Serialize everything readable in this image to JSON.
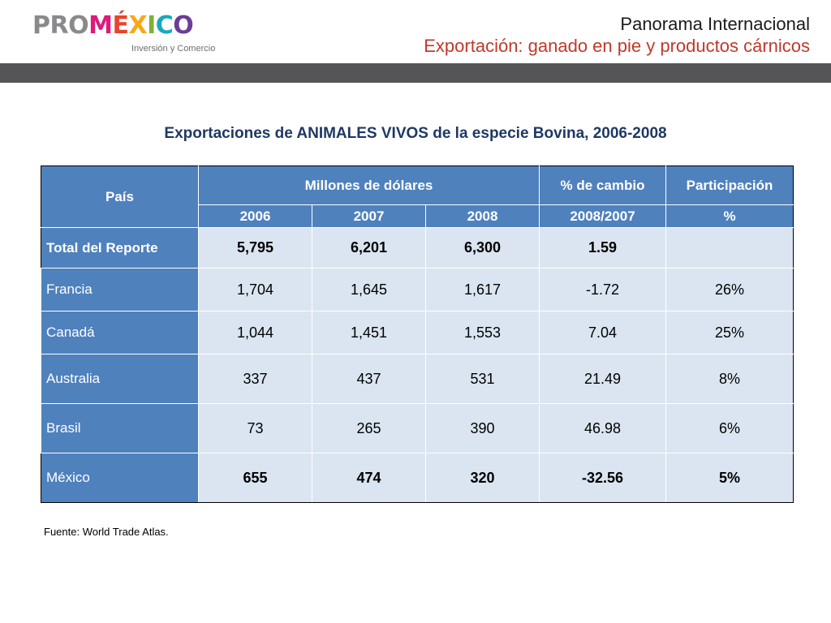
{
  "logo": {
    "pro": "PRO",
    "mexico": [
      "M",
      "É",
      "X",
      "I",
      "C",
      "O"
    ],
    "subtitle": "Inversión y Comercio"
  },
  "header": {
    "title": "Panorama Internacional",
    "subtitle_strong": "Exportación:",
    "subtitle_rest": " ganado en pie y productos cárnicos"
  },
  "table_title": "Exportaciones de ANIMALES VIVOS de la especie Bovina, 2006-2008",
  "table": {
    "col_pais": "País",
    "col_millones": "Millones de dólares",
    "col_cambio": "% de cambio",
    "col_cambio_sub": "2008/2007",
    "col_part": "Participación",
    "col_part_sub": "%",
    "years": [
      "2006",
      "2007",
      "2008"
    ],
    "total": {
      "name": "Total del Reporte",
      "v2006": "5,795",
      "v2007": "6,201",
      "v2008": "6,300",
      "cambio": "1.59",
      "part": ""
    },
    "rows": [
      {
        "name": "Francia",
        "v2006": "1,704",
        "v2007": "1,645",
        "v2008": "1,617",
        "cambio": "-1.72",
        "part": "26%"
      },
      {
        "name": "Canadá",
        "v2006": "1,044",
        "v2007": "1,451",
        "v2008": "1,553",
        "cambio": "7.04",
        "part": "25%"
      },
      {
        "name": "Australia",
        "v2006": "337",
        "v2007": "437",
        "v2008": "531",
        "cambio": "21.49",
        "part": "8%"
      },
      {
        "name": "Brasil",
        "v2006": "73",
        "v2007": "265",
        "v2008": "390",
        "cambio": "46.98",
        "part": "6%"
      },
      {
        "name": "México",
        "v2006": "655",
        "v2007": "474",
        "v2008": "320",
        "cambio": "-32.56",
        "part": "5%"
      }
    ]
  },
  "source": "Fuente: World Trade Atlas.",
  "colors": {
    "header_blue": "#4f81bd",
    "cell_blue": "#dbe5f1",
    "title_navy": "#1f3864",
    "accent_red": "#c0392b",
    "bar_gray": "#555557"
  }
}
